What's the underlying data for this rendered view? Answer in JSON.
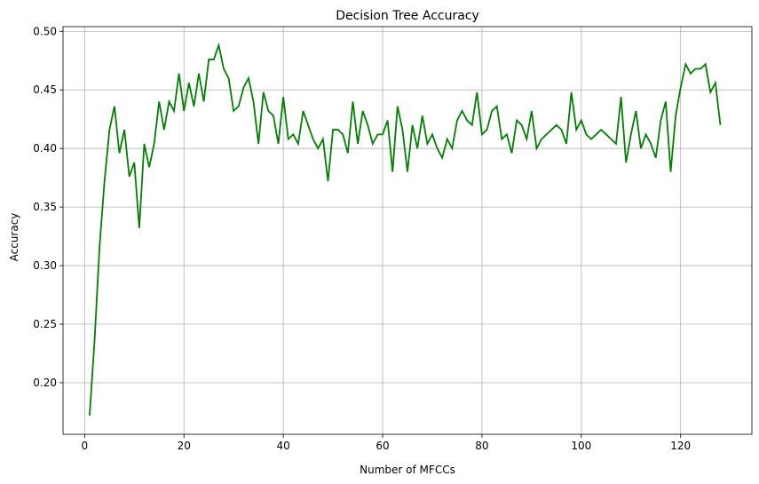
{
  "chart_data": {
    "type": "line",
    "title": "Decision Tree Accuracy",
    "xlabel": "Number of MFCCs",
    "ylabel": "Accuracy",
    "xlim": [
      -4.35,
      134.35
    ],
    "ylim": [
      0.156,
      0.504
    ],
    "xticks": [
      0,
      20,
      40,
      60,
      80,
      100,
      120
    ],
    "yticks": [
      0.2,
      0.25,
      0.3,
      0.35,
      0.4,
      0.45,
      0.5
    ],
    "xtick_labels": [
      "0",
      "20",
      "40",
      "60",
      "80",
      "100",
      "120"
    ],
    "ytick_labels": [
      "0.20",
      "0.25",
      "0.30",
      "0.35",
      "0.40",
      "0.45",
      "0.50"
    ],
    "grid": true,
    "series": [
      {
        "color": "#008000",
        "x": [
          1,
          2,
          3,
          4,
          5,
          6,
          7,
          8,
          9,
          10,
          11,
          12,
          13,
          14,
          15,
          16,
          17,
          18,
          19,
          20,
          21,
          22,
          23,
          24,
          25,
          26,
          27,
          28,
          29,
          30,
          31,
          32,
          33,
          34,
          35,
          36,
          37,
          38,
          39,
          40,
          41,
          42,
          43,
          44,
          45,
          46,
          47,
          48,
          49,
          50,
          51,
          52,
          53,
          54,
          55,
          56,
          57,
          58,
          59,
          60,
          61,
          62,
          63,
          64,
          65,
          66,
          67,
          68,
          69,
          70,
          71,
          72,
          73,
          74,
          75,
          76,
          77,
          78,
          79,
          80,
          81,
          82,
          83,
          84,
          85,
          86,
          87,
          88,
          89,
          90,
          91,
          92,
          93,
          94,
          95,
          96,
          97,
          98,
          99,
          100,
          101,
          102,
          103,
          104,
          105,
          106,
          107,
          108,
          109,
          110,
          111,
          112,
          113,
          114,
          115,
          116,
          117,
          118,
          119,
          120,
          121,
          122,
          123,
          124,
          125,
          126,
          127,
          128
        ],
        "y": [
          0.172,
          0.236,
          0.316,
          0.372,
          0.416,
          0.436,
          0.396,
          0.416,
          0.376,
          0.388,
          0.332,
          0.404,
          0.384,
          0.404,
          0.44,
          0.416,
          0.44,
          0.432,
          0.464,
          0.432,
          0.456,
          0.436,
          0.464,
          0.44,
          0.476,
          0.476,
          0.488,
          0.468,
          0.46,
          0.432,
          0.436,
          0.452,
          0.46,
          0.44,
          0.404,
          0.448,
          0.432,
          0.428,
          0.404,
          0.444,
          0.408,
          0.412,
          0.404,
          0.432,
          0.42,
          0.408,
          0.4,
          0.408,
          0.372,
          0.416,
          0.416,
          0.412,
          0.396,
          0.44,
          0.404,
          0.432,
          0.42,
          0.404,
          0.412,
          0.412,
          0.424,
          0.38,
          0.436,
          0.416,
          0.38,
          0.42,
          0.4,
          0.428,
          0.404,
          0.412,
          0.4,
          0.392,
          0.408,
          0.4,
          0.424,
          0.432,
          0.424,
          0.42,
          0.448,
          0.412,
          0.416,
          0.432,
          0.436,
          0.408,
          0.412,
          0.396,
          0.424,
          0.42,
          0.408,
          0.432,
          0.4,
          0.408,
          0.412,
          0.416,
          0.42,
          0.416,
          0.404,
          0.448,
          0.416,
          0.424,
          0.412,
          0.408,
          0.412,
          0.416,
          0.412,
          0.408,
          0.404,
          0.444,
          0.388,
          0.412,
          0.432,
          0.4,
          0.412,
          0.404,
          0.392,
          0.424,
          0.44,
          0.38,
          0.428,
          0.452,
          0.472,
          0.464,
          0.468,
          0.468,
          0.472,
          0.448,
          0.456,
          0.42
        ]
      }
    ]
  }
}
